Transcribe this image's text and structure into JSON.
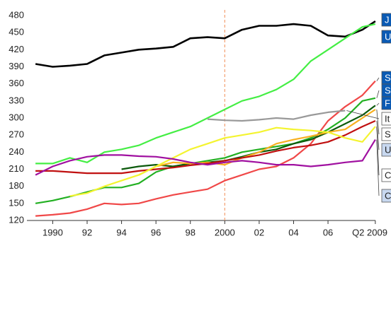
{
  "chart_data": {
    "type": "line",
    "x": [
      1989,
      1990,
      1991,
      1992,
      1993,
      1994,
      1995,
      1996,
      1997,
      1998,
      1999,
      2000,
      2001,
      2002,
      2003,
      2004,
      2005,
      2006,
      2007,
      2008,
      2008.75
    ],
    "xlim": [
      1988.5,
      2009.25
    ],
    "xticks": [
      {
        "value": 1990,
        "label": "1990"
      },
      {
        "value": 1992,
        "label": "92"
      },
      {
        "value": 1994,
        "label": "94"
      },
      {
        "value": 1996,
        "label": "96"
      },
      {
        "value": 1998,
        "label": "98"
      },
      {
        "value": 2000,
        "label": "2000"
      },
      {
        "value": 2002,
        "label": "02"
      },
      {
        "value": 2004,
        "label": "04"
      },
      {
        "value": 2006,
        "label": "06"
      },
      {
        "value": 2008.75,
        "label": "Q2 2009"
      }
    ],
    "ylim": [
      120,
      480
    ],
    "yticks": [
      120,
      150,
      180,
      210,
      240,
      270,
      300,
      330,
      360,
      390,
      420,
      450,
      480
    ],
    "grid": false,
    "vline": {
      "x": 2000,
      "color": "#f4a070"
    },
    "series": [
      {
        "name": "J",
        "color": "#000000",
        "legend_fill": "#0a5ab4",
        "values": [
          395,
          390,
          392,
          395,
          410,
          415,
          420,
          422,
          425,
          440,
          442,
          440,
          455,
          462,
          462,
          465,
          462,
          445,
          443,
          455,
          470
        ]
      },
      {
        "name": "U",
        "color": "#44ee44",
        "legend_fill": "#0a5ab4",
        "values": [
          220,
          220,
          230,
          222,
          240,
          245,
          252,
          265,
          275,
          285,
          300,
          315,
          330,
          338,
          350,
          368,
          400,
          420,
          440,
          460,
          465
        ]
      },
      {
        "name": "S",
        "color": "#f04848",
        "legend_fill": "#0a5ab4",
        "values": [
          128,
          130,
          133,
          140,
          150,
          148,
          150,
          158,
          165,
          170,
          175,
          190,
          200,
          210,
          215,
          230,
          255,
          295,
          320,
          340,
          365
        ]
      },
      {
        "name": "S",
        "color": "#22b022",
        "legend_fill": "#0a5ab4",
        "values": [
          150,
          155,
          162,
          170,
          178,
          178,
          185,
          205,
          215,
          220,
          225,
          230,
          240,
          245,
          250,
          255,
          265,
          280,
          300,
          330,
          335
        ]
      },
      {
        "name": "F",
        "color": "#0c5a0c",
        "legend_fill": "#0a5ab4",
        "values": [
          null,
          null,
          null,
          null,
          null,
          210,
          215,
          218,
          215,
          220,
          222,
          225,
          232,
          240,
          245,
          255,
          262,
          275,
          290,
          305,
          322
        ]
      },
      {
        "name": "It",
        "color": "#999999",
        "legend_fill": "#ffffff",
        "values": [
          null,
          null,
          null,
          null,
          null,
          null,
          null,
          null,
          null,
          null,
          298,
          296,
          295,
          297,
          300,
          298,
          305,
          310,
          313,
          null,
          null
        ]
      },
      {
        "name": "S",
        "color": "#f8b020",
        "legend_fill": "#ffffff",
        "values": [
          null,
          null,
          null,
          null,
          null,
          null,
          200,
          215,
          222,
          220,
          222,
          218,
          230,
          240,
          255,
          262,
          268,
          275,
          280,
          300,
          315
        ]
      },
      {
        "name": "U",
        "color": "#c01010",
        "legend_fill": "#c8d8f0",
        "values": [
          207,
          207,
          205,
          203,
          203,
          203,
          207,
          210,
          213,
          217,
          220,
          225,
          230,
          235,
          242,
          248,
          252,
          258,
          270,
          285,
          295
        ]
      },
      {
        "name": "C",
        "color": "#f4f430",
        "legend_fill": "#ffffff",
        "values": [
          null,
          null,
          163,
          168,
          180,
          190,
          200,
          215,
          230,
          245,
          255,
          265,
          270,
          275,
          283,
          280,
          278,
          275,
          265,
          258,
          285
        ]
      },
      {
        "name": "C",
        "color": "#a010a0",
        "legend_fill": "#c8d8f0",
        "values": [
          200,
          215,
          225,
          232,
          235,
          235,
          233,
          232,
          228,
          222,
          218,
          222,
          225,
          222,
          218,
          218,
          215,
          218,
          222,
          225,
          262
        ]
      }
    ]
  }
}
